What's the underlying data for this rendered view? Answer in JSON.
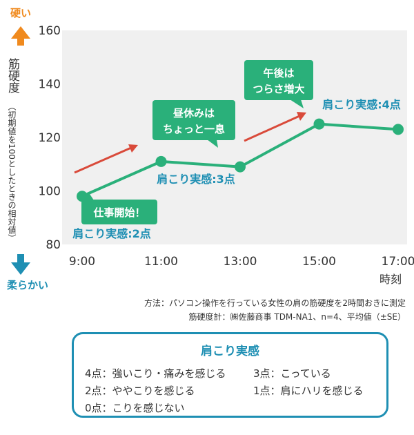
{
  "chart_data": {
    "type": "line",
    "x": [
      "9:00",
      "11:00",
      "13:00",
      "15:00",
      "17:00"
    ],
    "values": [
      98,
      111,
      109,
      125,
      123
    ],
    "ylim": [
      80,
      160
    ],
    "yticks": [
      "80",
      "100",
      "120",
      "140",
      "160"
    ],
    "xlabel": "時刻",
    "ylabel": "筋硬度",
    "ylabel_note": "（初期値を100としたときの相対値）",
    "y_top_label": "硬い",
    "y_bottom_label": "柔らかい",
    "grid": false,
    "annotations": {
      "start": "仕事開始！",
      "lunch_line1": "昼休みは",
      "lunch_line2": "ちょっと一息",
      "afternoon_line1": "午後は",
      "afternoon_line2": "つらさ増大",
      "score2": "肩こり実感:2点",
      "score3": "肩こり実感:3点",
      "score4": "肩こり実感:4点"
    },
    "colors": {
      "line": "#2ab07a",
      "plot_bg": "#f0f0f0",
      "callout": "#2ab07a",
      "score_text": "#1e8fb3",
      "trend_arrow": "#d94a3a",
      "up_arrow": "#f08a1e",
      "down_arrow": "#1e8fb3"
    }
  },
  "notes": {
    "method": "方法：パソコン操作を行っている女性の肩の筋硬度を2時間おきに測定",
    "meter": "筋硬度計：㈱佐藤商事 TDM-NA1、n=4、平均値（±SE）"
  },
  "legend": {
    "title": "肩こり実感",
    "items": [
      "4点：強いこり・痛みを感じる",
      "3点：こっている",
      "2点：ややこりを感じる",
      "1点：肩にハリを感じる",
      "0点：こりを感じない"
    ]
  }
}
